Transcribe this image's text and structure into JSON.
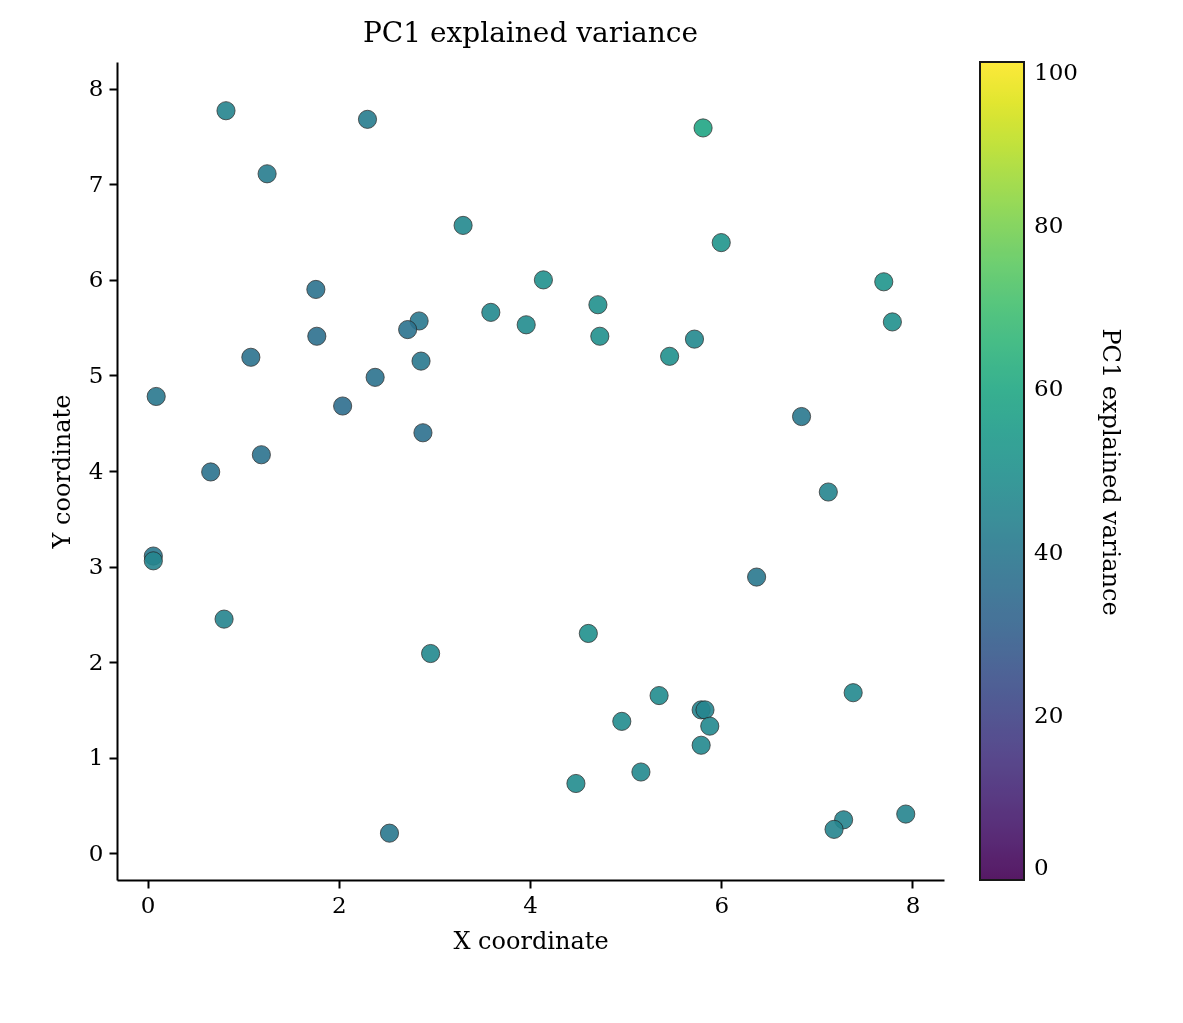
{
  "chart_data": {
    "type": "scatter",
    "title": "PC1 explained variance",
    "xlabel": "X coordinate",
    "ylabel": "Y coordinate",
    "clabel": "PC1 explained variance",
    "x": [
      0.82,
      2.3,
      5.81,
      1.25,
      3.3,
      6.0,
      4.14,
      7.7,
      1.76,
      4.71,
      3.59,
      2.84,
      7.79,
      3.96,
      2.72,
      1.77,
      4.73,
      5.72,
      1.08,
      5.46,
      2.86,
      2.38,
      0.09,
      2.04,
      6.84,
      2.88,
      1.19,
      0.66,
      7.12,
      0.06,
      0.06,
      6.37,
      0.8,
      4.61,
      2.96,
      7.38,
      5.35,
      5.79,
      5.83,
      4.96,
      5.88,
      5.79,
      5.16,
      4.48,
      7.93,
      7.28,
      7.18,
      2.53
    ],
    "values": [
      7.77,
      7.68,
      7.59,
      7.11,
      6.57,
      6.39,
      6.0,
      5.98,
      5.9,
      5.74,
      5.66,
      5.57,
      5.56,
      5.53,
      5.48,
      5.41,
      5.41,
      5.38,
      5.19,
      5.2,
      5.15,
      4.98,
      4.78,
      4.68,
      4.57,
      4.4,
      4.17,
      3.99,
      3.78,
      3.11,
      3.06,
      2.89,
      2.45,
      2.3,
      2.09,
      1.68,
      1.65,
      1.5,
      1.5,
      1.38,
      1.33,
      1.13,
      0.85,
      0.73,
      0.41,
      0.35,
      0.25,
      0.21
    ],
    "cvalues": [
      45,
      42,
      59,
      42,
      47,
      52,
      50,
      52,
      38,
      50,
      47,
      40,
      50,
      48,
      38,
      37,
      50,
      47,
      38,
      50,
      40,
      38,
      40,
      36,
      40,
      37,
      38,
      38,
      45,
      40,
      45,
      40,
      45,
      50,
      47,
      47,
      48,
      45,
      45,
      48,
      47,
      47,
      47,
      48,
      45,
      45,
      45,
      40
    ],
    "xlim": [
      -0.32,
      8.33
    ],
    "ylim": [
      -0.28,
      8.28
    ],
    "xticks": [
      0,
      2,
      4,
      6,
      8
    ],
    "yticks": [
      0,
      1,
      2,
      3,
      4,
      5,
      6,
      7,
      8
    ],
    "clim": [
      0,
      100
    ],
    "cticks": [
      0,
      20,
      40,
      60,
      80,
      100
    ],
    "grid": false,
    "marker": "circle"
  }
}
